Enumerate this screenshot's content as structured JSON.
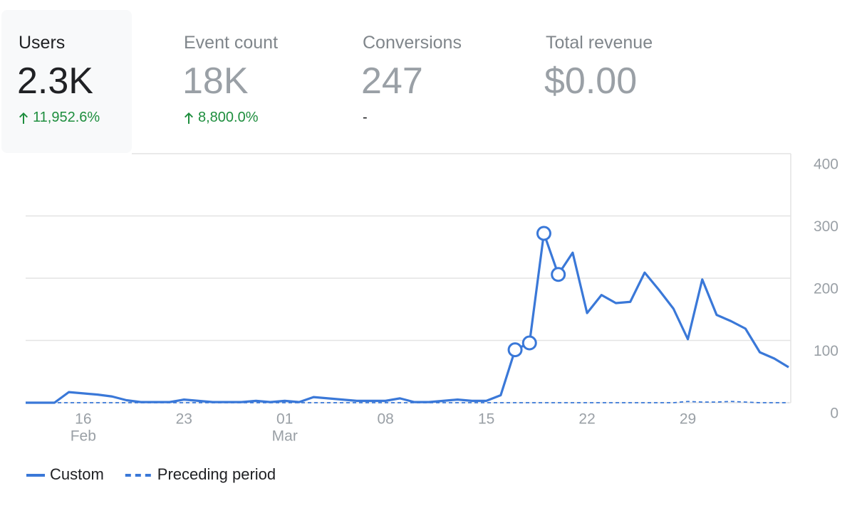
{
  "metrics": [
    {
      "label": "Users",
      "value": "2.3K",
      "change": "11,952.6%"
    },
    {
      "label": "Event count",
      "value": "18K",
      "change": "8,800.0%"
    },
    {
      "label": "Conversions",
      "value": "247",
      "change": "-"
    },
    {
      "label": "Total revenue",
      "value": "$0.00"
    }
  ],
  "chart_data": {
    "type": "line",
    "categories": [
      null,
      null,
      null,
      null,
      "16",
      null,
      null,
      null,
      null,
      null,
      null,
      "23",
      null,
      null,
      null,
      null,
      null,
      null,
      "01",
      null,
      null,
      null,
      null,
      null,
      null,
      "08",
      null,
      null,
      null,
      null,
      null,
      null,
      "15",
      null,
      null,
      null,
      null,
      null,
      null,
      "22",
      null,
      null,
      null,
      null,
      null,
      null,
      "29",
      null,
      null,
      null,
      null,
      null,
      null,
      null
    ],
    "category_months": [
      null,
      null,
      null,
      null,
      "Feb",
      null,
      null,
      null,
      null,
      null,
      null,
      null,
      null,
      null,
      null,
      null,
      null,
      null,
      "Mar",
      null,
      null,
      null,
      null,
      null,
      null,
      null,
      null,
      null,
      null,
      null,
      null,
      null,
      null,
      null,
      null,
      null,
      null,
      null,
      null,
      null,
      null,
      null,
      null,
      null,
      null,
      null,
      null,
      null,
      null,
      null,
      null,
      null,
      null,
      null
    ],
    "series": [
      {
        "name": "Custom",
        "color": "#3a78d8",
        "dash": false,
        "values": [
          0,
          0,
          0,
          17,
          15,
          13,
          10,
          4,
          1,
          1,
          1,
          5,
          3,
          1,
          1,
          1,
          3,
          1,
          3,
          1,
          9,
          7,
          5,
          3,
          3,
          3,
          7,
          1,
          1,
          3,
          5,
          3,
          3,
          12,
          85,
          96,
          272,
          206,
          241,
          144,
          173,
          160,
          162,
          209,
          181,
          151,
          102,
          198,
          141,
          131,
          119,
          81,
          71,
          57
        ],
        "highlighted": [
          34,
          35,
          36,
          37
        ]
      },
      {
        "name": "Preceding period",
        "color": "#3a78d8",
        "dash": true,
        "values": [
          0,
          0,
          0,
          0,
          0,
          0,
          0,
          0,
          0,
          0,
          0,
          0,
          0,
          0,
          0,
          0,
          0,
          0,
          0,
          0,
          0,
          0,
          0,
          0,
          0,
          0,
          0,
          0,
          0,
          0,
          0,
          0,
          0,
          0,
          0,
          0,
          0,
          0,
          0,
          0,
          0,
          0,
          0,
          0,
          0,
          0,
          2,
          1,
          1,
          2,
          1,
          0,
          0,
          0
        ]
      }
    ],
    "ylim": [
      0,
      400
    ],
    "yticks": [
      0,
      100,
      200,
      300,
      400
    ],
    "grid": true,
    "legend": "bottom-left"
  }
}
